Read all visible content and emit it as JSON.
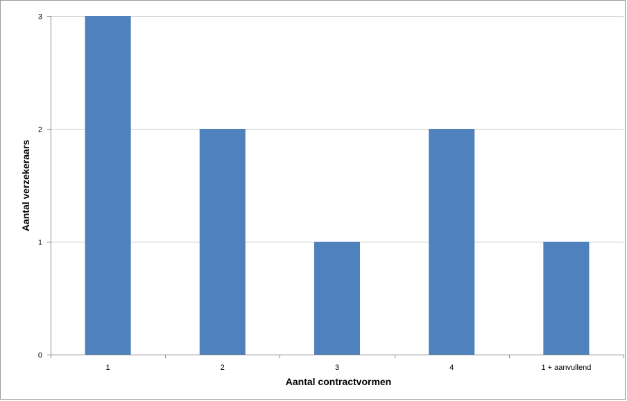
{
  "chart_data": {
    "type": "bar",
    "categories": [
      "1",
      "2",
      "3",
      "4",
      "1 + aanvullend"
    ],
    "values": [
      3,
      2,
      1,
      2,
      1
    ],
    "title": "",
    "xlabel": "Aantal contractvormen",
    "ylabel": "Aantal verzekeraars",
    "ylim": [
      0,
      3
    ],
    "yticks": [
      "0",
      "1",
      "2",
      "3"
    ],
    "grid": true,
    "bar_color": "#4f81bd",
    "gridline_color": "#c8c8c8",
    "axis_color": "#868686"
  }
}
